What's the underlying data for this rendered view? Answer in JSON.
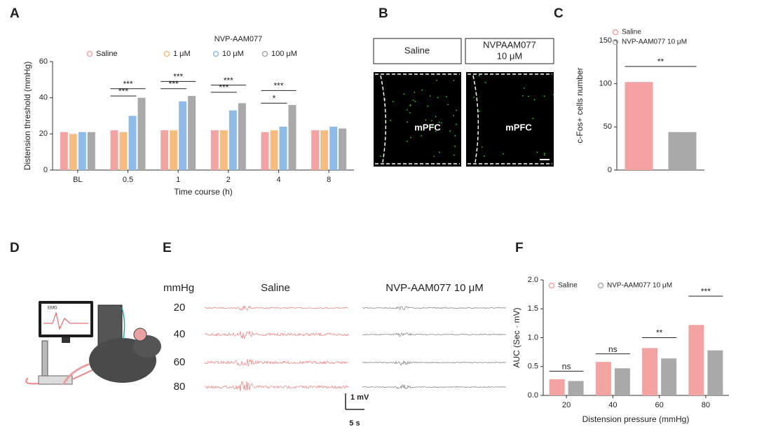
{
  "chart_data": [
    {
      "type": "bar",
      "panel": "A",
      "y_label": "Distension threshold (mmHg)",
      "x_label": "Time course (h)",
      "legend_title": "NVP-AAM077",
      "categories": [
        "BL",
        "0.5",
        "1",
        "2",
        "4",
        "8"
      ],
      "series": [
        {
          "name": "Saline",
          "color": "#f4a3a3",
          "values": [
            21,
            22,
            22,
            22,
            21,
            22
          ]
        },
        {
          "name": "1 μM",
          "color": "#f6bd80",
          "values": [
            20,
            21,
            22,
            22,
            22,
            22
          ]
        },
        {
          "name": "10 μM",
          "color": "#8fbbe8",
          "values": [
            21,
            30,
            38,
            33,
            24,
            24
          ]
        },
        {
          "name": "100 μM",
          "color": "#a9a9a9",
          "values": [
            21,
            40,
            41,
            37,
            36,
            23
          ]
        }
      ],
      "ylim": [
        0,
        60
      ],
      "yticks": [
        0,
        20,
        40,
        60
      ],
      "annotations": [
        {
          "text": "***",
          "x": "0.5",
          "between": [
            "Saline",
            "100 μM"
          ],
          "y": 45
        },
        {
          "text": "***",
          "x": "0.5",
          "between": [
            "Saline",
            "10 μM"
          ],
          "y": 41
        },
        {
          "text": "***",
          "x": "1",
          "between": [
            "Saline",
            "100 μM"
          ],
          "y": 49
        },
        {
          "text": "***",
          "x": "1",
          "between": [
            "Saline",
            "10 μM"
          ],
          "y": 45
        },
        {
          "text": "***",
          "x": "2",
          "between": [
            "Saline",
            "100 μM"
          ],
          "y": 47
        },
        {
          "text": "***",
          "x": "2",
          "between": [
            "Saline",
            "10 μM"
          ],
          "y": 43
        },
        {
          "text": "***",
          "x": "4",
          "between": [
            "Saline",
            "100 μM"
          ],
          "y": 44
        },
        {
          "text": "*",
          "x": "4",
          "between": [
            "Saline",
            "10 μM"
          ],
          "y": 37
        }
      ]
    },
    {
      "type": "bar",
      "panel": "C",
      "y_label": "c-Fos+ cells number",
      "categories": [
        null
      ],
      "series": [
        {
          "name": "Saline",
          "color": "#f4a3a3",
          "values": [
            102
          ]
        },
        {
          "name": "NVP-AAM077 10 μM",
          "color": "#a9a9a9",
          "values": [
            44
          ]
        }
      ],
      "ylim": [
        0,
        150
      ],
      "yticks": [
        0,
        50,
        100,
        150
      ],
      "annotations": [
        {
          "text": "**",
          "x": null,
          "between": [
            "Saline",
            "NVP-AAM077 10 μM"
          ],
          "y": 120
        }
      ]
    },
    {
      "type": "bar",
      "panel": "F",
      "y_label": "AUC (Sec · mV)",
      "x_label": "Distension pressure (mmHg)",
      "categories": [
        "20",
        "40",
        "60",
        "80"
      ],
      "series": [
        {
          "name": "Saline",
          "color": "#f4a3a3",
          "values": [
            0.28,
            0.58,
            0.82,
            1.22
          ]
        },
        {
          "name": "NVP-AAM077 10 μM",
          "color": "#a9a9a9",
          "values": [
            0.25,
            0.47,
            0.64,
            0.78
          ]
        }
      ],
      "ylim": [
        0,
        2.0
      ],
      "yticks": [
        {
          "value": 0,
          "label": "0.0"
        },
        {
          "value": 0.5,
          "label": "0.5"
        },
        {
          "value": 1,
          "label": "1.0"
        },
        {
          "value": 1.5,
          "label": "1.5"
        },
        {
          "value": 2,
          "label": "2.0"
        }
      ],
      "annotations": [
        {
          "text": "ns",
          "x": "20",
          "between": [
            "Saline",
            "NVP-AAM077 10 μM"
          ],
          "y": 0.42
        },
        {
          "text": "ns",
          "x": "40",
          "between": [
            "Saline",
            "NVP-AAM077 10 μM"
          ],
          "y": 0.72
        },
        {
          "text": "**",
          "x": "60",
          "between": [
            "Saline",
            "NVP-AAM077 10 μM"
          ],
          "y": 1.0
        },
        {
          "text": "***",
          "x": "80",
          "between": [
            "Saline",
            "NVP-AAM077 10 μM"
          ],
          "y": 1.72
        }
      ]
    }
  ],
  "panel_b": {
    "label": "B",
    "groups": [
      {
        "title": "Saline",
        "region": "mPFC"
      },
      {
        "title": [
          "NVPAAM077",
          "10 μM"
        ],
        "region": "mPFC"
      }
    ]
  },
  "panel_d": {
    "label": "D",
    "screen_text": "EMG"
  },
  "panel_e": {
    "label": "E",
    "unit": "mmHg",
    "groups": [
      "Saline",
      "NVP-AAM077 10 μM"
    ],
    "pressures": [
      "20",
      "40",
      "60",
      "80"
    ],
    "scale_y": "1 mV",
    "scale_x": "5 s"
  }
}
